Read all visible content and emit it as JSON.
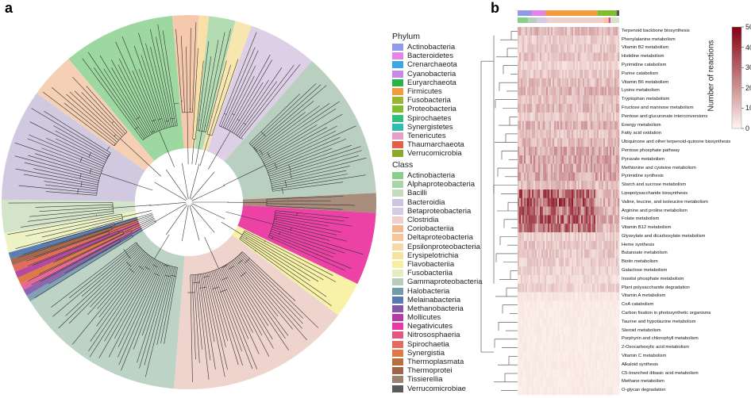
{
  "panels": {
    "a": "a",
    "b": "b"
  },
  "phylum_legend": {
    "title": "Phylum",
    "items": [
      {
        "label": "Actinobacteria",
        "color": "#8f9bea"
      },
      {
        "label": "Bacteroidetes",
        "color": "#e683e8"
      },
      {
        "label": "Crenarchaeota",
        "color": "#36a8e8"
      },
      {
        "label": "Cyanobacteria",
        "color": "#c78ae8"
      },
      {
        "label": "Euryarchaeota",
        "color": "#27b34a"
      },
      {
        "label": "Firmicutes",
        "color": "#f39a3c"
      },
      {
        "label": "Fusobacteria",
        "color": "#9cb52e"
      },
      {
        "label": "Proteobacteria",
        "color": "#7dbf2e"
      },
      {
        "label": "Spirochaetes",
        "color": "#33c07c"
      },
      {
        "label": "Synergistetes",
        "color": "#2fbcb1"
      },
      {
        "label": "Tenericutes",
        "color": "#e6a0c8"
      },
      {
        "label": "Thaumarchaeota",
        "color": "#e65f45"
      },
      {
        "label": "Verrucomicrobia",
        "color": "#8aab2a"
      }
    ]
  },
  "class_legend": {
    "title": "Class",
    "items": [
      {
        "label": "Actinobacteria",
        "color": "#87cf8c"
      },
      {
        "label": "Alphaproteobacteria",
        "color": "#a7d5a7"
      },
      {
        "label": "Bacilli",
        "color": "#c5ddbe"
      },
      {
        "label": "Bacteroidia",
        "color": "#cdc4dd"
      },
      {
        "label": "Betaproteobacteria",
        "color": "#d7cbe3"
      },
      {
        "label": "Clostridia",
        "color": "#efcfc9"
      },
      {
        "label": "Coriobacteriia",
        "color": "#f3b98f"
      },
      {
        "label": "Deltaproteobacteria",
        "color": "#f6c59a"
      },
      {
        "label": "Epsilonproteobacteria",
        "color": "#f6d9a6"
      },
      {
        "label": "Erysipelotrichia",
        "color": "#f7e3a0"
      },
      {
        "label": "Flavobacteriia",
        "color": "#f5ef9f"
      },
      {
        "label": "Fusobacteriia",
        "color": "#e5ecc0"
      },
      {
        "label": "Gammaproteobacteria",
        "color": "#b7cebf"
      },
      {
        "label": "Halobacteria",
        "color": "#6f9cab"
      },
      {
        "label": "Melainabacteria",
        "color": "#5a79b3"
      },
      {
        "label": "Methanobacteria",
        "color": "#8656a8"
      },
      {
        "label": "Mollicutes",
        "color": "#b63aa5"
      },
      {
        "label": "Negativicutes",
        "color": "#e83aa0"
      },
      {
        "label": "Nitrososphaeria",
        "color": "#e55683"
      },
      {
        "label": "Spirochaetia",
        "color": "#e36b5f"
      },
      {
        "label": "Synergistia",
        "color": "#de7a47"
      },
      {
        "label": "Thermoplasmata",
        "color": "#b96f3c"
      },
      {
        "label": "Thermoprotei",
        "color": "#a26447"
      },
      {
        "label": "Tissierellia",
        "color": "#9c8070"
      },
      {
        "label": "Verrucomicrobiae",
        "color": "#5a5a5a"
      }
    ]
  },
  "sector_colors": [
    {
      "class": "Actinobacteria",
      "color": "#9ed8a1",
      "span_deg": 34
    },
    {
      "class": "Coriobacteriia",
      "color": "#f6c9ac",
      "span_deg": 8
    },
    {
      "class": "Epsilonproteobacteria",
      "color": "#f8e0a8",
      "span_deg": 3
    },
    {
      "class": "Alphaproteobacteria",
      "color": "#b4dcb3",
      "span_deg": 8
    },
    {
      "class": "Erysipelotrichia",
      "color": "#f8e6b0",
      "span_deg": 5
    },
    {
      "class": "Betaproteobacteria",
      "color": "#ddd0e6",
      "span_deg": 21
    },
    {
      "class": "Gammaproteobacteria",
      "color": "#b9d0c0",
      "span_deg": 45
    },
    {
      "class": "Tissierellia",
      "color": "#a88c7c",
      "span_deg": 6
    },
    {
      "class": "Negativicutes",
      "color": "#ec41a5",
      "span_deg": 22
    },
    {
      "class": "Flavobacteriia",
      "color": "#f7f2a8",
      "span_deg": 11
    },
    {
      "class": "Clostridia",
      "color": "#efd3cd",
      "span_deg": 56
    },
    {
      "class": "Gammaproteobacteria",
      "color": "#bdd3c5",
      "span_deg": 52
    },
    {
      "class": "Halobacteria",
      "color": "#7fa3b5",
      "span_deg": 2
    },
    {
      "class": "Methanobacteria",
      "color": "#8f65b3",
      "span_deg": 2
    },
    {
      "class": "Nitrososphaeria",
      "color": "#e76796",
      "span_deg": 2
    },
    {
      "class": "Synergistia",
      "color": "#de7a47",
      "span_deg": 2
    },
    {
      "class": "Mollicutes",
      "color": "#b54a9e",
      "span_deg": 2
    },
    {
      "class": "Spirochaetia",
      "color": "#e36b5f",
      "span_deg": 2
    },
    {
      "class": "Thermoprotei",
      "color": "#a56a4c",
      "span_deg": 2
    },
    {
      "class": "Melainabacteria",
      "color": "#5b7fb5",
      "span_deg": 2
    },
    {
      "class": "Fusobacteriia",
      "color": "#eef3c6",
      "span_deg": 6
    },
    {
      "class": "Bacilli",
      "color": "#d4e4ca",
      "span_deg": 10
    },
    {
      "class": "Bacteroidia",
      "color": "#d1c9e0",
      "span_deg": 34
    },
    {
      "class": "Deltaproteobacteria",
      "color": "#f5d0b4",
      "span_deg": 14
    }
  ],
  "heatmap": {
    "colorbar_title": "Number of reactions",
    "colorbar_ticks": [
      "50",
      "40",
      "30",
      "20",
      "10",
      "0"
    ],
    "scale_max": 50,
    "top_bar_phylum_colors": [
      "#8f9bea",
      "#e683e8",
      "#f39a3c",
      "#7dbf2e",
      "#555555"
    ],
    "top_bar_class_colors": [
      "#87cf8c",
      "#b7cebf",
      "#d7cbe3",
      "#efcfc9",
      "#f6c59a",
      "#e83aa0",
      "#d4e4ca"
    ],
    "pathways": [
      {
        "name": "Terpenoid backbone biosynthesis",
        "level": 12
      },
      {
        "name": "Phenylalanine metabolism",
        "level": 8
      },
      {
        "name": "Vitamin B2 metabolism",
        "level": 9
      },
      {
        "name": "Histidine metabolism",
        "level": 10
      },
      {
        "name": "Pyrimidine catabolism",
        "level": 7
      },
      {
        "name": "Purine catabolism",
        "level": 9
      },
      {
        "name": "Vitamin B6 metabolism",
        "level": 11
      },
      {
        "name": "Lysine metabolism",
        "level": 13
      },
      {
        "name": "Tryptophan metabolism",
        "level": 10
      },
      {
        "name": "Fructose and mannose metabolism",
        "level": 12
      },
      {
        "name": "Pentose and glucuronate interconversions",
        "level": 9
      },
      {
        "name": "Energy metabolism",
        "level": 13
      },
      {
        "name": "Fatty acid oxidation",
        "level": 10
      },
      {
        "name": "Ubiquinone and other terpenoid-quinone biosynthesis",
        "level": 12
      },
      {
        "name": "Pentose phosphate pathway",
        "level": 15
      },
      {
        "name": "Pyruvate metabolism",
        "level": 16
      },
      {
        "name": "Methionine and cysteine metabolism",
        "level": 15
      },
      {
        "name": "Pyrimidine synthesis",
        "level": 16
      },
      {
        "name": "Starch and sucrose metabolism",
        "level": 11
      },
      {
        "name": "Lipopolysaccharide biosynthesis",
        "level": 28
      },
      {
        "name": "Valine, leucine, and isoleucine metabolism",
        "level": 30
      },
      {
        "name": "Arginine and proline metabolism",
        "level": 27
      },
      {
        "name": "Folate metabolism",
        "level": 29
      },
      {
        "name": "Vitamin B12 metabolism",
        "level": 25
      },
      {
        "name": "Glyoxylate and dicarboxylate metabolism",
        "level": 8
      },
      {
        "name": "Heme synthesis",
        "level": 9
      },
      {
        "name": "Butanoate metabolism",
        "level": 9
      },
      {
        "name": "Biotin metabolism",
        "level": 8
      },
      {
        "name": "Galactose metabolism",
        "level": 7
      },
      {
        "name": "Inositol phosphate metabolism",
        "level": 6
      },
      {
        "name": "Plant polysaccharide degradation",
        "level": 7
      },
      {
        "name": "Vitamin A metabolism",
        "level": 3
      },
      {
        "name": "CoA catabolism",
        "level": 2
      },
      {
        "name": "Carbon fixation in photosynthetic organisms",
        "level": 2
      },
      {
        "name": "Taurine and hypotaurine metabolism",
        "level": 2
      },
      {
        "name": "Steroid metabolism",
        "level": 2
      },
      {
        "name": "Porphyrin and chlorophyll metabolism",
        "level": 2
      },
      {
        "name": "2-Oxocarboxylic acid metabolism",
        "level": 2
      },
      {
        "name": "Vitamin C metabolism",
        "level": 2
      },
      {
        "name": "Alkaloid synthesis",
        "level": 2
      },
      {
        "name": "C5-branched dibasic acid metabolism",
        "level": 2
      },
      {
        "name": "Methane metabolism",
        "level": 2
      },
      {
        "name": "O-glycan degradation",
        "level": 2
      }
    ]
  }
}
